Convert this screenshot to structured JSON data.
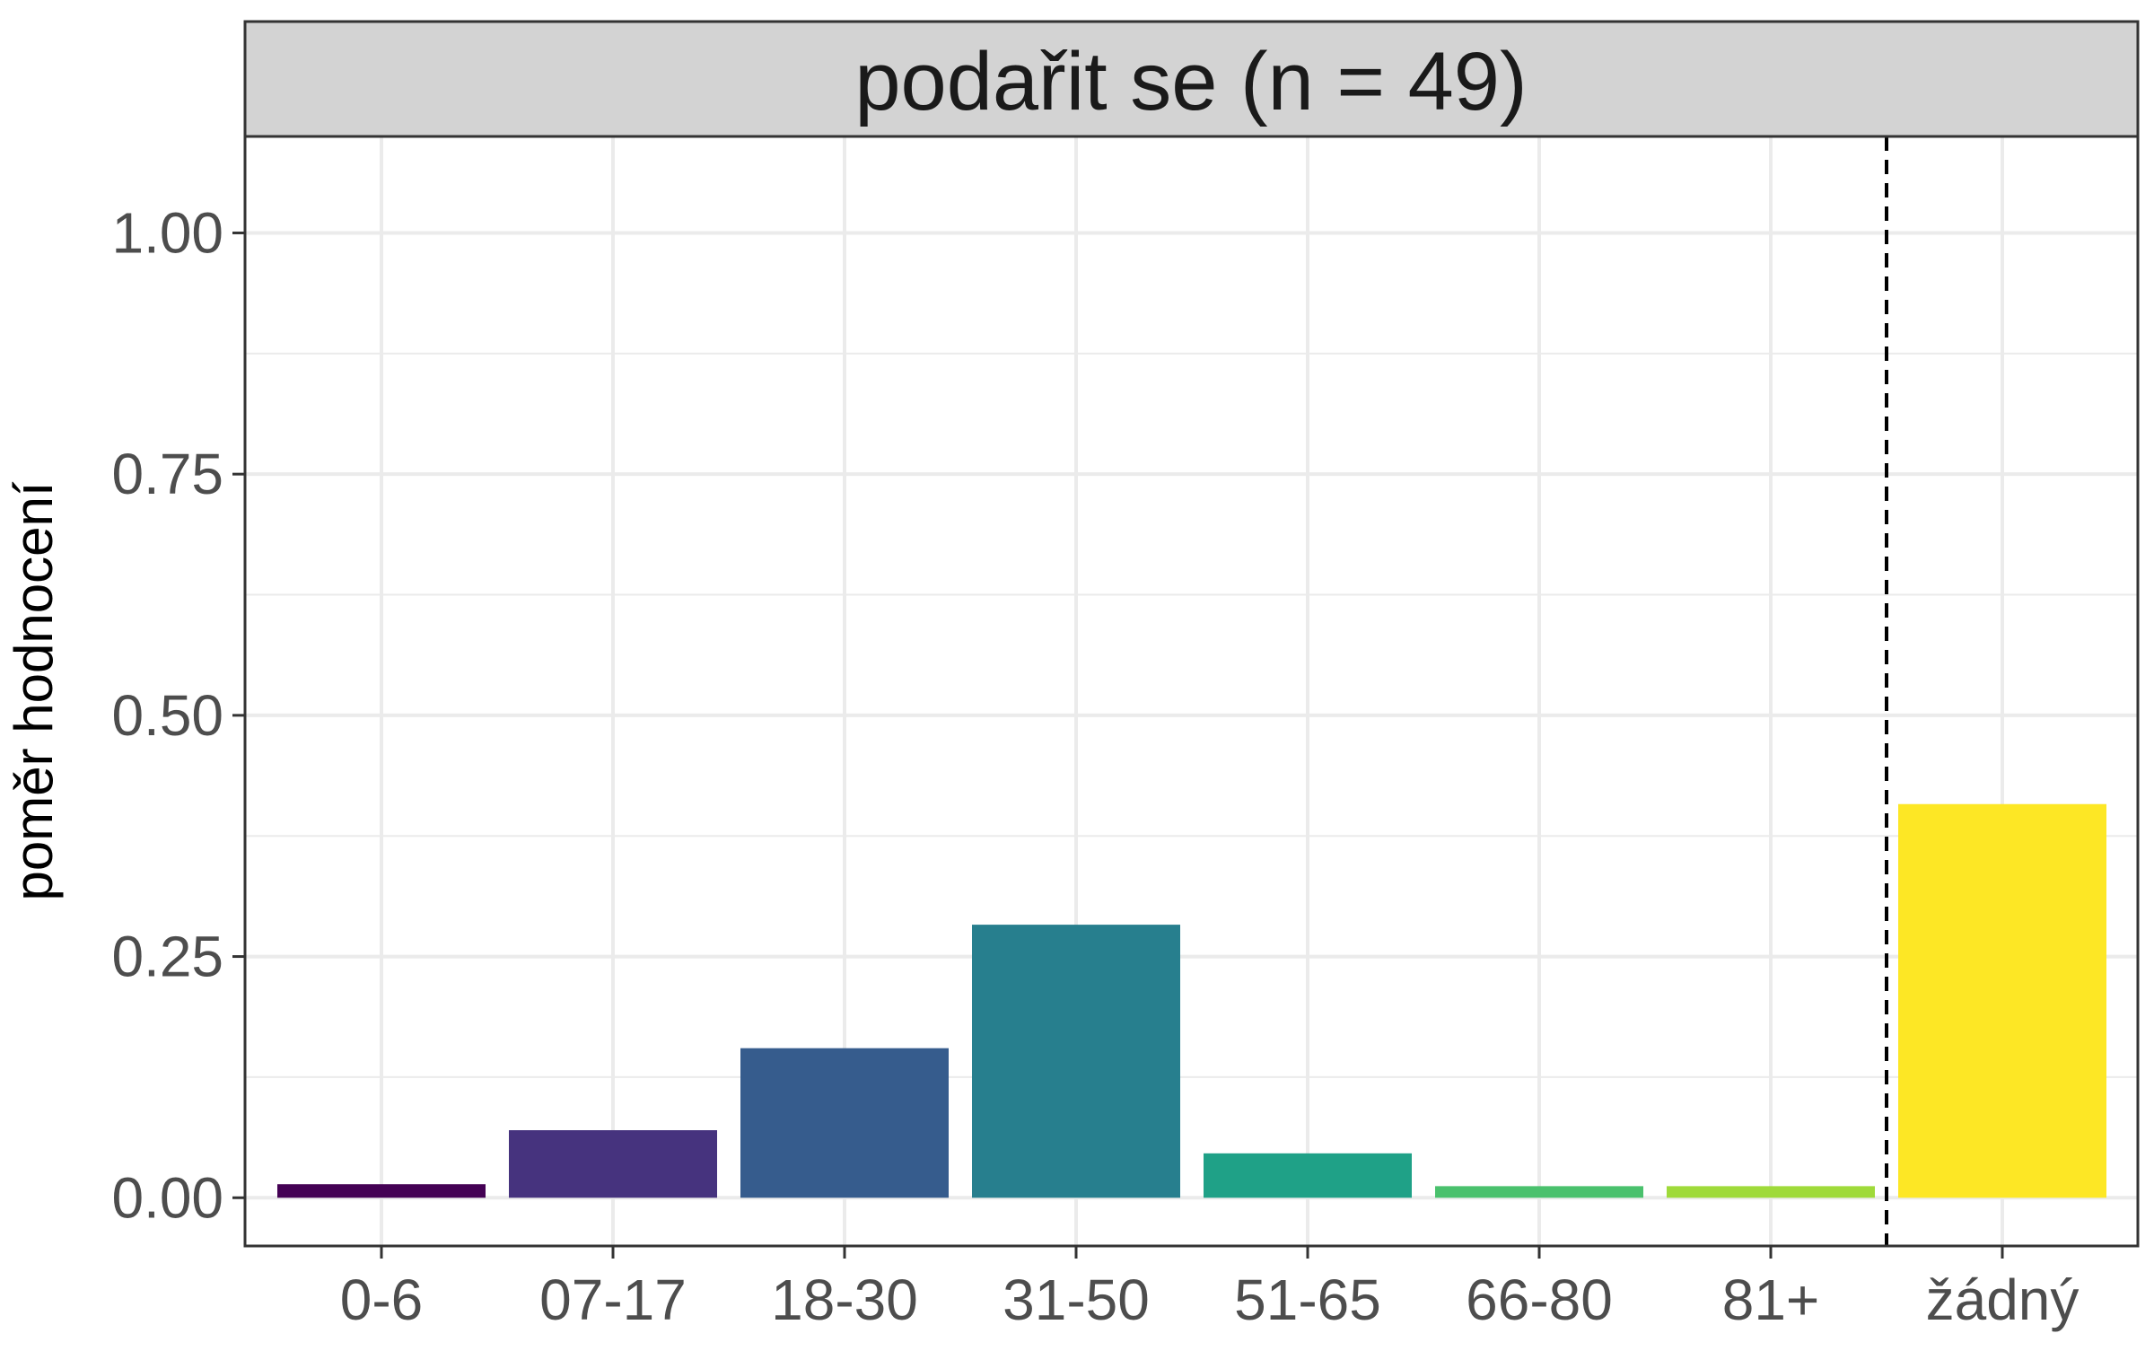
{
  "chart_data": {
    "type": "bar",
    "title": "",
    "facet_title": "podařit se (n = 49)",
    "xlabel": "",
    "ylabel": "poměr hodnocení",
    "categories": [
      "0-6",
      "07-17",
      "18-30",
      "31-50",
      "51-65",
      "66-80",
      "81+",
      "žádný"
    ],
    "values": [
      0.014,
      0.07,
      0.155,
      0.283,
      0.046,
      0.012,
      0.012,
      0.408
    ],
    "colors": [
      "#440154",
      "#46337e",
      "#365c8d",
      "#277f8e",
      "#1fa187",
      "#4ac16d",
      "#9fda3a",
      "#fde725"
    ],
    "ylim": [
      -0.05,
      1.1
    ],
    "yticks": [
      0,
      0.25,
      0.5,
      0.75,
      1
    ],
    "ytick_labels": [
      "0.00",
      "0.25",
      "0.50",
      "0.75",
      "1.00"
    ],
    "separator_after_category": "81+",
    "separator_style": "dashed",
    "grid": true,
    "legend": "none",
    "colors_palette": {
      "panel_border": "#333333",
      "strip_fill": "#d3d3d3",
      "grid": "#ebebeb",
      "tick_text": "#4d4d4d"
    }
  }
}
